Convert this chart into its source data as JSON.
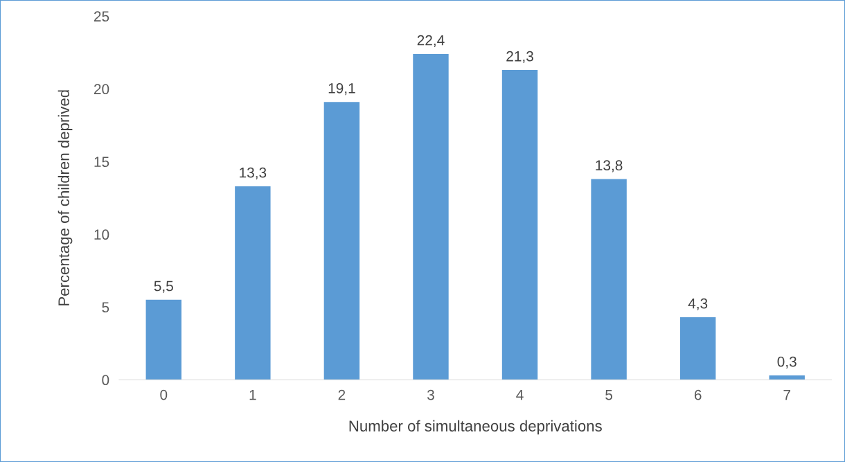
{
  "chart_data": {
    "type": "bar",
    "xlabel": "Number of simultaneous deprivations",
    "ylabel": "Percentage of children deprived",
    "categories": [
      "0",
      "1",
      "2",
      "3",
      "4",
      "5",
      "6",
      "7"
    ],
    "values": [
      5.5,
      13.3,
      19.1,
      22.4,
      21.3,
      13.8,
      4.3,
      0.3
    ],
    "value_labels": [
      "5,5",
      "13,3",
      "19,1",
      "22,4",
      "21,3",
      "13,8",
      "4,3",
      "0,3"
    ],
    "color": "#5b9bd5",
    "ylim": [
      0,
      25
    ],
    "yticks": [
      0,
      5,
      10,
      15,
      20,
      25
    ],
    "grid": false
  }
}
